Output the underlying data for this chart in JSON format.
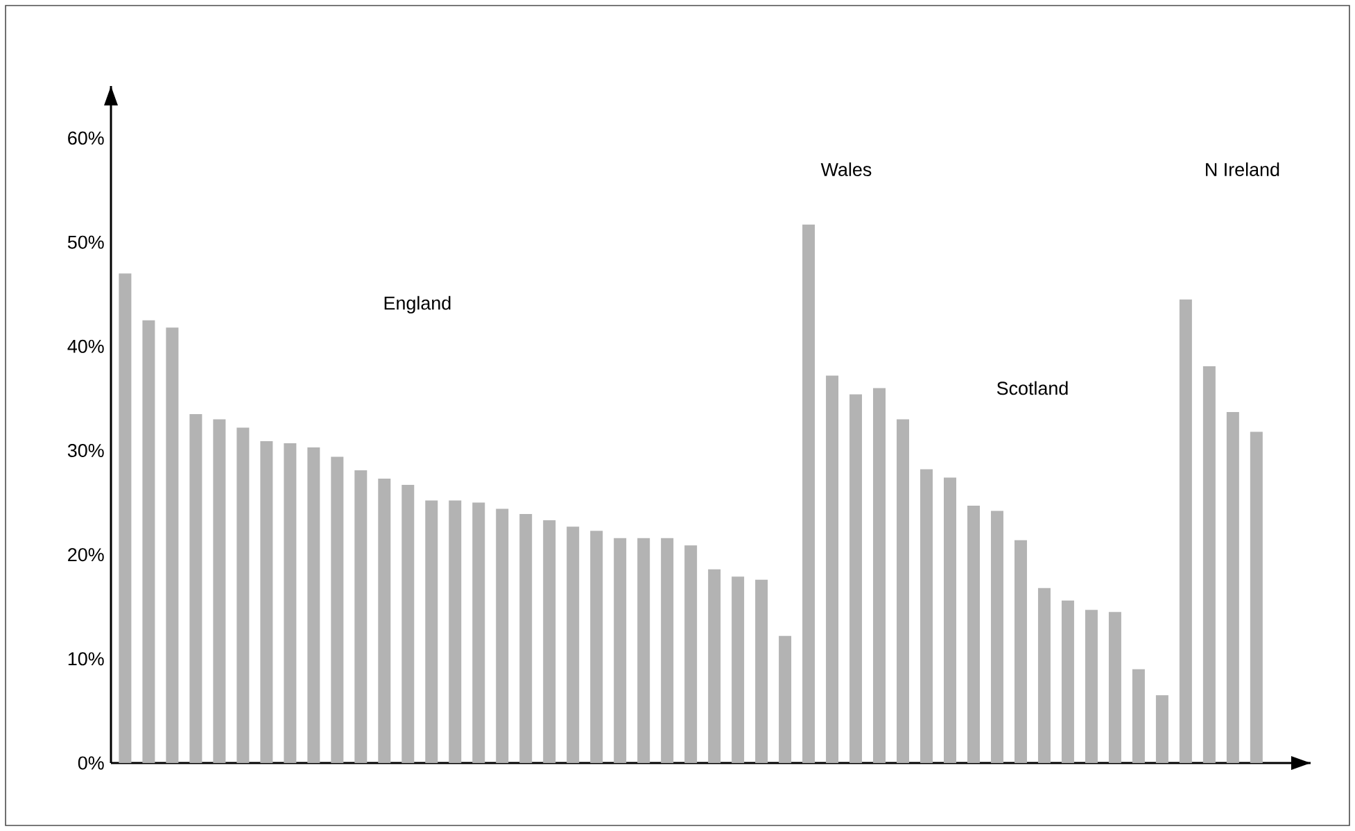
{
  "chart_data": {
    "type": "bar",
    "categories": [
      null,
      null,
      null,
      null,
      null,
      null,
      null,
      null,
      null,
      null,
      null,
      null,
      null,
      null,
      null,
      null,
      null,
      null,
      null,
      null,
      null,
      null,
      null,
      null,
      null,
      null,
      null,
      null,
      null,
      null,
      null,
      null,
      null,
      null,
      null,
      null,
      null,
      null,
      null,
      null,
      null,
      null,
      null,
      null,
      null,
      null,
      null,
      null,
      null
    ],
    "values": [
      47.0,
      42.5,
      41.8,
      33.5,
      33.0,
      32.2,
      30.9,
      30.7,
      30.3,
      29.4,
      28.1,
      27.3,
      26.7,
      25.2,
      25.2,
      25.0,
      24.4,
      23.9,
      23.3,
      22.7,
      22.3,
      21.6,
      21.6,
      21.6,
      20.9,
      18.6,
      17.9,
      17.6,
      12.2,
      51.7,
      37.2,
      35.4,
      36.0,
      33.0,
      28.2,
      27.4,
      24.7,
      24.2,
      21.4,
      16.8,
      15.6,
      14.7,
      14.5,
      9.0,
      6.5,
      44.5,
      38.1,
      33.7,
      31.8
    ],
    "color": "#b3b3b3",
    "ylim": [
      0,
      65
    ],
    "yticks": [
      {
        "value": 0,
        "label": "0%"
      },
      {
        "value": 10,
        "label": "10%"
      },
      {
        "value": 20,
        "label": "20%"
      },
      {
        "value": 30,
        "label": "30%"
      },
      {
        "value": 40,
        "label": "40%"
      },
      {
        "value": 50,
        "label": "50%"
      },
      {
        "value": 60,
        "label": "60%"
      }
    ],
    "annotations": [
      "England",
      "Wales",
      "Scotland",
      "N Ireland"
    ],
    "tick_labels": "y",
    "grid": false
  }
}
